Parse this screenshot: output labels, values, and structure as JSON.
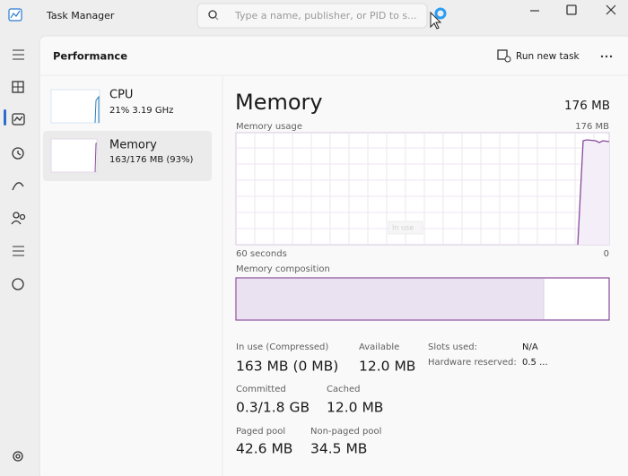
{
  "window": {
    "title": "Task Manager",
    "search_placeholder": "Type a name, publisher, or PID to s..."
  },
  "header": {
    "title": "Performance",
    "run_new_task": "Run new task"
  },
  "sidebar": [
    {
      "name": "CPU",
      "detail": "21% 3.19 GHz"
    },
    {
      "name": "Memory",
      "detail": "163/176 MB (93%)"
    }
  ],
  "main": {
    "title": "Memory",
    "total": "176 MB",
    "graph": {
      "label": "Memory usage",
      "max": "176 MB",
      "x_left": "60 seconds",
      "x_right": "0",
      "tooltip": "In use"
    },
    "composition_label": "Memory composition",
    "stats": [
      {
        "label": "In use (Compressed)",
        "value": "163 MB (0 MB)"
      },
      {
        "label": "Available",
        "value": "12.0 MB"
      },
      {
        "label": "Committed",
        "value": "0.3/1.8 GB"
      },
      {
        "label": "Cached",
        "value": "12.0 MB"
      },
      {
        "label": "Paged pool",
        "value": "42.6 MB"
      },
      {
        "label": "Non-paged pool",
        "value": "34.5 MB"
      }
    ],
    "hardware": [
      {
        "label": "Slots used:",
        "value": "N/A"
      },
      {
        "label": "Hardware reserved:",
        "value": "0.5 ..."
      }
    ]
  }
}
